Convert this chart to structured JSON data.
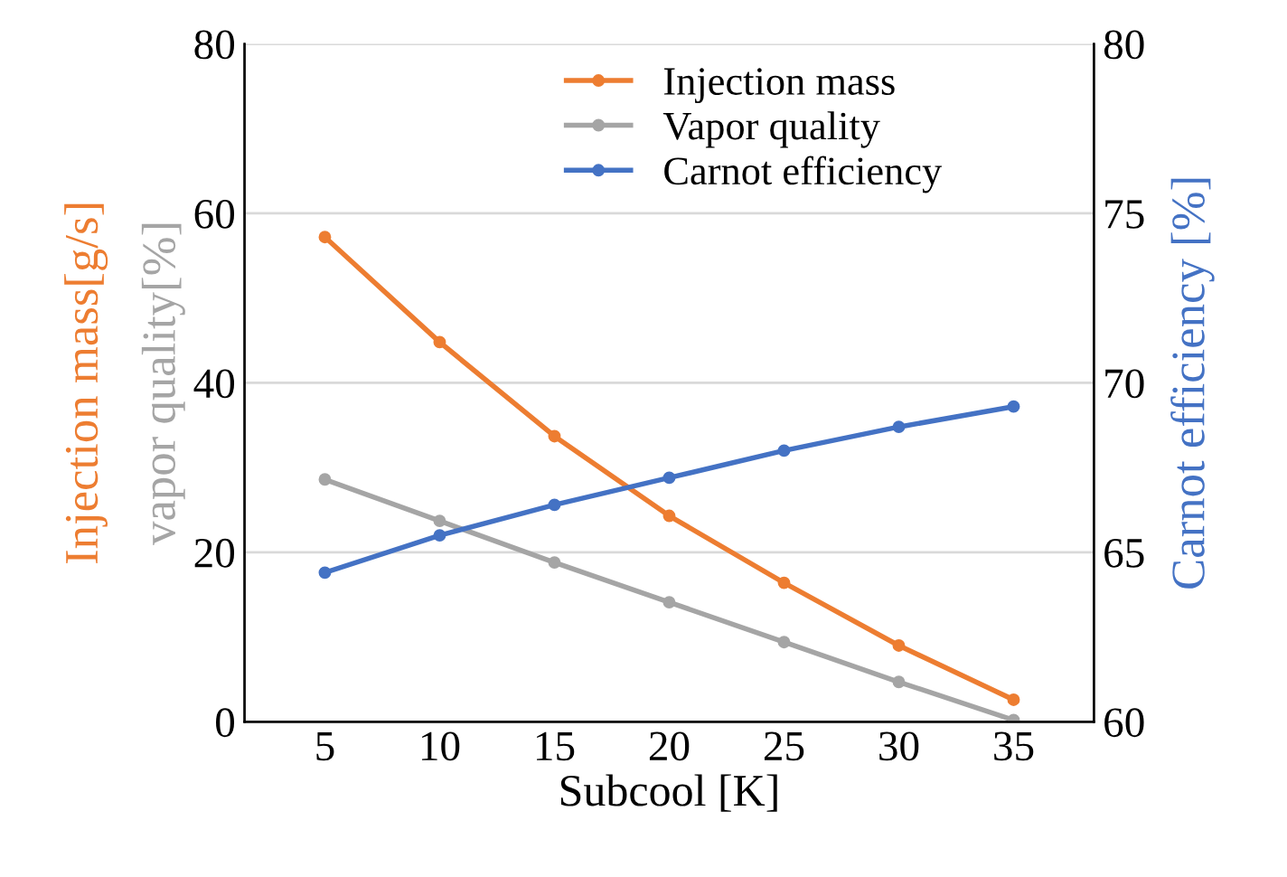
{
  "chart_data": {
    "type": "line",
    "xlabel": "Subcool [K]",
    "ylabel": "Injection mass[g/s]",
    "y2label": "Carnot efficiency [%]",
    "annotations": [
      "vapor quality[%]"
    ],
    "categories": [
      "5",
      "10",
      "15",
      "20",
      "25",
      "30",
      "35"
    ],
    "series": [
      {
        "name": "Injection mass",
        "color": "#ed7d31",
        "values": [
          57.2,
          44.8,
          33.7,
          24.3,
          16.4,
          9.0,
          2.6
        ]
      },
      {
        "name": "Vapor quality",
        "color": "#a5a5a5",
        "values": [
          28.6,
          23.7,
          18.8,
          14.1,
          9.4,
          4.7,
          0.2
        ]
      },
      {
        "name": "Carnot efficiency",
        "color": "#4472c4",
        "axis": "y2",
        "values": [
          64.4,
          65.5,
          66.4,
          67.2,
          68.0,
          68.7,
          69.3
        ]
      }
    ],
    "ylim": [
      0,
      80
    ],
    "yticks": [
      0,
      20,
      40,
      60,
      80
    ],
    "y2lim": [
      60,
      80
    ],
    "y2ticks": [
      60,
      65,
      70,
      75,
      80
    ],
    "grid": "y",
    "legend": "top",
    "marker": "circle",
    "line_style": "solid"
  }
}
